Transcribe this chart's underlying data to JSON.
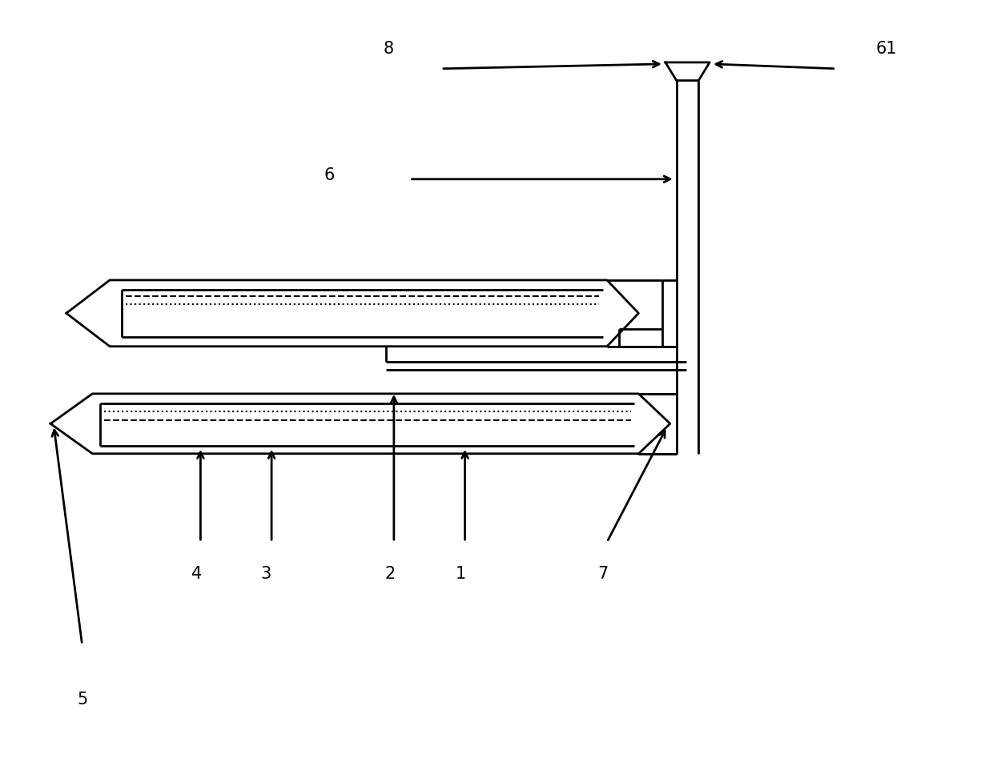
{
  "bg_color": "#ffffff",
  "line_color": "#000000",
  "lw_main": 2.0,
  "lw_thin": 1.5,
  "fig_width": 12.4,
  "fig_height": 9.67,
  "fontsize": 15
}
